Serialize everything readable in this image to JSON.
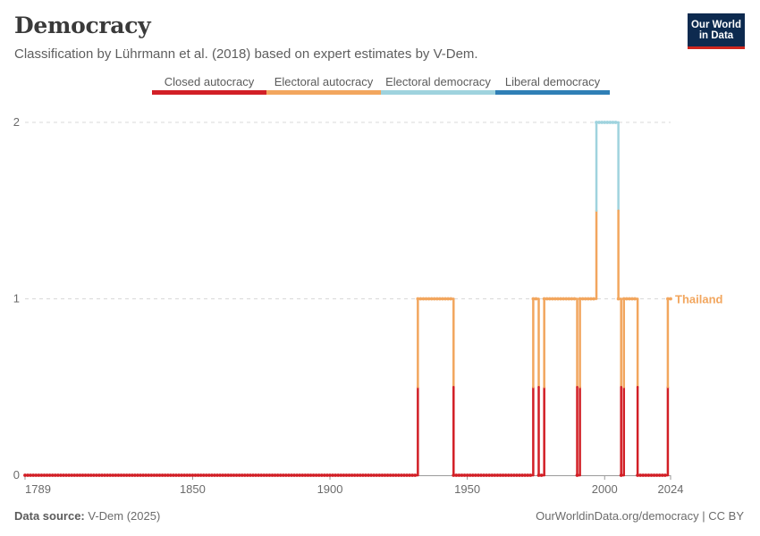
{
  "header": {
    "title": "Democracy",
    "subtitle": "Classification by Lührmann et al. (2018) based on expert estimates by V-Dem."
  },
  "logo": {
    "line1": "Our World",
    "line2": "in Data"
  },
  "footer": {
    "source_label": "Data source:",
    "source_value": "V-Dem (2025)",
    "url": "OurWorldinData.org/democracy | CC BY"
  },
  "colors": {
    "closed_autocracy": "#d21f26",
    "electoral_autocracy": "#f2a65e",
    "electoral_democracy": "#9fd3de",
    "liberal_democracy": "#2f7fb6",
    "grid": "#d9d9d9",
    "axis_text": "#6b6b6b"
  },
  "legend": [
    {
      "label": "Closed autocracy",
      "color": "#d21f26"
    },
    {
      "label": "Electoral autocracy",
      "color": "#f2a65e"
    },
    {
      "label": "Electoral democracy",
      "color": "#9fd3de"
    },
    {
      "label": "Liberal democracy",
      "color": "#2f7fb6"
    }
  ],
  "chart_data": {
    "type": "line",
    "title": "Democracy",
    "series": [
      {
        "name": "Thailand",
        "step": true,
        "points": [
          [
            1789,
            0
          ],
          [
            1932,
            1
          ],
          [
            1945,
            0
          ],
          [
            1974,
            1
          ],
          [
            1976,
            0
          ],
          [
            1978,
            1
          ],
          [
            1990,
            0
          ],
          [
            1991,
            1
          ],
          [
            1997,
            2
          ],
          [
            2005,
            1
          ],
          [
            2006,
            0
          ],
          [
            2007,
            1
          ],
          [
            2012,
            0
          ],
          [
            2023,
            1
          ],
          [
            2024,
            1
          ]
        ]
      }
    ],
    "xlim": [
      1789,
      2024
    ],
    "ylim": [
      0,
      2
    ],
    "x_ticks": [
      1789,
      1850,
      1900,
      1950,
      2000,
      2024
    ],
    "y_ticks": [
      0,
      1,
      2
    ],
    "end_label": "Thailand",
    "grid": "horizontal dashed"
  }
}
